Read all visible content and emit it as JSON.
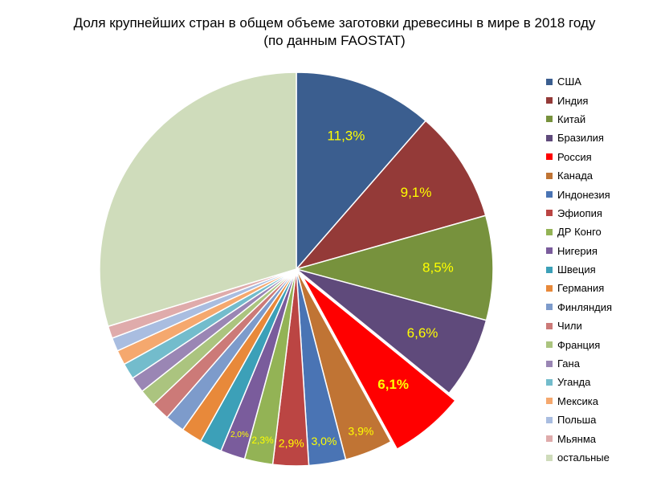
{
  "chart_data": {
    "type": "pie",
    "title": "Доля крупнейших стран в общем объеме заготовки древесины в мире в 2018 году",
    "subtitle": "(по данным FAOSTAT)",
    "legend_position": "right",
    "slices": [
      {
        "name": "США",
        "value": 11.3,
        "label": "11,3%",
        "color": "#3b5e8f"
      },
      {
        "name": "Индия",
        "value": 9.1,
        "label": "9,1%",
        "color": "#943a38"
      },
      {
        "name": "Китай",
        "value": 8.5,
        "label": "8,5%",
        "color": "#77923d"
      },
      {
        "name": "Бразилия",
        "value": 6.6,
        "label": "6,6%",
        "color": "#5f4a7b"
      },
      {
        "name": "Россия",
        "value": 6.1,
        "label": "6,1%",
        "color": "#ff0000"
      },
      {
        "name": "Канада",
        "value": 3.9,
        "label": "3,9%",
        "color": "#c07434"
      },
      {
        "name": "Индонезия",
        "value": 3.0,
        "label": "3,0%",
        "color": "#4a74b4"
      },
      {
        "name": "Эфиопия",
        "value": 2.9,
        "label": "2,9%",
        "color": "#bb4543"
      },
      {
        "name": "ДР Конго",
        "value": 2.3,
        "label": "2,3%",
        "color": "#93b355"
      },
      {
        "name": "Нигерия",
        "value": 2.0,
        "label": "2,0%",
        "color": "#7a5c9c"
      },
      {
        "name": "Швеция",
        "value": 1.8,
        "label": "",
        "color": "#3ca0b8"
      },
      {
        "name": "Германия",
        "value": 1.7,
        "label": "",
        "color": "#e8893a"
      },
      {
        "name": "Финляндия",
        "value": 1.6,
        "label": "",
        "color": "#7d9bcb"
      },
      {
        "name": "Чили",
        "value": 1.5,
        "label": "",
        "color": "#cc7a78"
      },
      {
        "name": "Франция",
        "value": 1.4,
        "label": "",
        "color": "#abc47f"
      },
      {
        "name": "Гана",
        "value": 1.3,
        "label": "",
        "color": "#9a86b4"
      },
      {
        "name": "Уганда",
        "value": 1.3,
        "label": "",
        "color": "#73bccc"
      },
      {
        "name": "Мексика",
        "value": 1.2,
        "label": "",
        "color": "#f5a86e"
      },
      {
        "name": "Польша",
        "value": 1.1,
        "label": "",
        "color": "#a9bde0"
      },
      {
        "name": "Мьянма",
        "value": 1.0,
        "label": "",
        "color": "#dfabab"
      },
      {
        "name": "остальные",
        "value": 29.4,
        "label": "",
        "color": "#cfdcbb"
      }
    ]
  }
}
